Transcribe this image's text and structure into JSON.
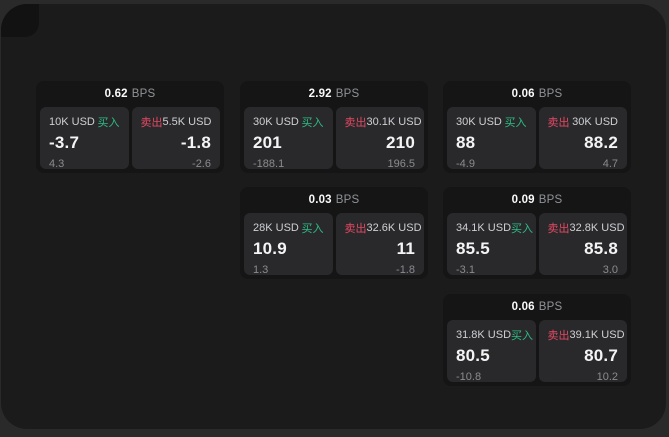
{
  "labels": {
    "buy": "买入",
    "sell": "卖出",
    "bps_unit": "BPS"
  },
  "colors": {
    "buy": "#2ebd85",
    "sell": "#e54862",
    "surface": "#1b1b1b",
    "card": "#151515",
    "panel": "#29292c"
  },
  "cards": [
    {
      "col": 1,
      "row": 1,
      "bps": "0.62",
      "buy": {
        "size": "10K USD",
        "value": "-3.7",
        "sub": "4.3"
      },
      "sell": {
        "size": "5.5K USD",
        "value": "-1.8",
        "sub": "-2.6"
      }
    },
    {
      "col": 2,
      "row": 1,
      "bps": "2.92",
      "buy": {
        "size": "30K USD",
        "value": "201",
        "sub": "-188.1"
      },
      "sell": {
        "size": "30.1K USD",
        "value": "210",
        "sub": "196.5"
      }
    },
    {
      "col": 3,
      "row": 1,
      "bps": "0.06",
      "buy": {
        "size": "30K USD",
        "value": "88",
        "sub": "-4.9"
      },
      "sell": {
        "size": "30K USD",
        "value": "88.2",
        "sub": "4.7"
      }
    },
    {
      "col": 2,
      "row": 2,
      "bps": "0.03",
      "buy": {
        "size": "28K USD",
        "value": "10.9",
        "sub": "1.3"
      },
      "sell": {
        "size": "32.6K USD",
        "value": "11",
        "sub": "-1.8"
      }
    },
    {
      "col": 3,
      "row": 2,
      "bps": "0.09",
      "buy": {
        "size": "34.1K USD",
        "value": "85.5",
        "sub": "-3.1"
      },
      "sell": {
        "size": "32.8K USD",
        "value": "85.8",
        "sub": "3.0"
      }
    },
    {
      "col": 3,
      "row": 3,
      "bps": "0.06",
      "buy": {
        "size": "31.8K USD",
        "value": "80.5",
        "sub": "-10.8"
      },
      "sell": {
        "size": "39.1K USD",
        "value": "80.7",
        "sub": "10.2"
      }
    }
  ]
}
